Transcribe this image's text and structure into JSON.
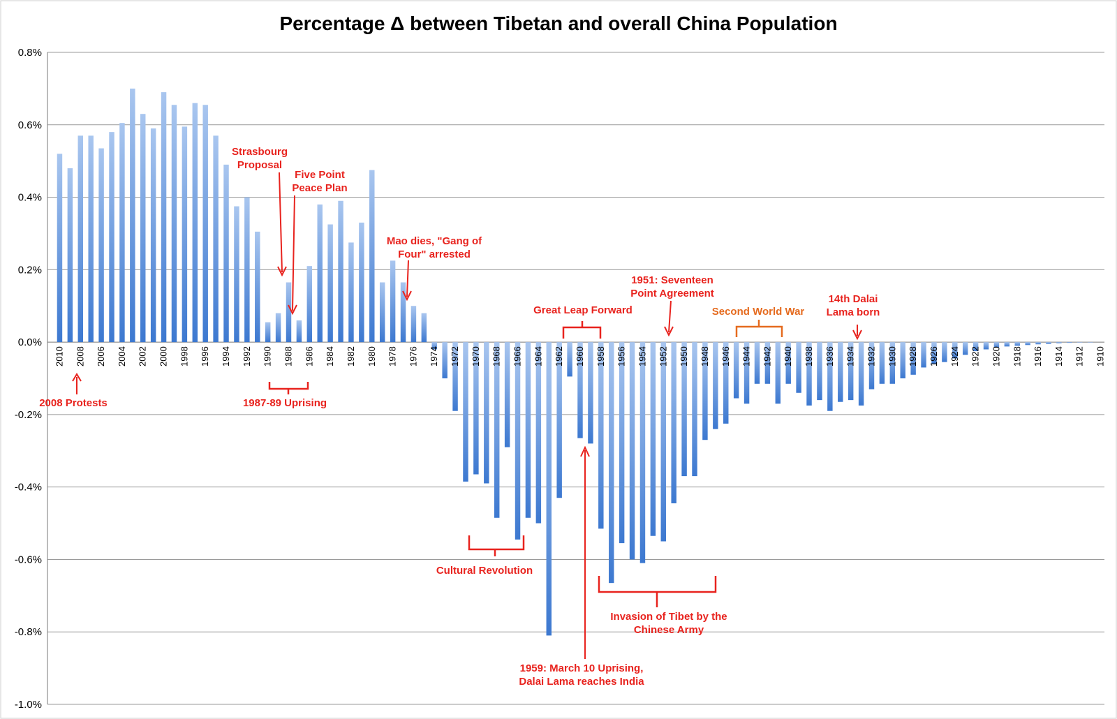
{
  "title": "Percentage Δ  between Tibetan and overall China Population",
  "colors": {
    "bar_top": "#a9c6ef",
    "bar_bottom": "#3c78d0",
    "annotation": "#e8231e",
    "annotation_alt": "#e56b1f",
    "grid": "#999999"
  },
  "chart_data": {
    "type": "bar",
    "title": "Percentage Δ  between Tibetan and overall China Population",
    "xlabel": "",
    "ylabel": "",
    "ylim": [
      -1.0,
      0.8
    ],
    "yticks": [
      "0.8%",
      "0.6%",
      "0.4%",
      "0.2%",
      "0.0%",
      "-0.2%",
      "-0.4%",
      "-0.6%",
      "-0.8%",
      "-1.0%"
    ],
    "grid": true,
    "x_order": "descending years 2010 to 1910; tick labels on even years",
    "categories": [
      2010,
      2009,
      2008,
      2007,
      2006,
      2005,
      2004,
      2003,
      2002,
      2001,
      2000,
      1999,
      1998,
      1997,
      1996,
      1995,
      1994,
      1993,
      1992,
      1991,
      1990,
      1989,
      1988,
      1987,
      1986,
      1985,
      1984,
      1983,
      1982,
      1981,
      1980,
      1979,
      1978,
      1977,
      1976,
      1975,
      1974,
      1973,
      1972,
      1971,
      1970,
      1969,
      1968,
      1967,
      1966,
      1965,
      1964,
      1963,
      1962,
      1961,
      1960,
      1959,
      1958,
      1957,
      1956,
      1955,
      1954,
      1953,
      1952,
      1951,
      1950,
      1949,
      1948,
      1947,
      1946,
      1945,
      1944,
      1943,
      1942,
      1941,
      1940,
      1939,
      1938,
      1937,
      1936,
      1935,
      1934,
      1933,
      1932,
      1931,
      1930,
      1929,
      1928,
      1927,
      1926,
      1925,
      1924,
      1923,
      1922,
      1921,
      1920,
      1919,
      1918,
      1917,
      1916,
      1915,
      1914,
      1913,
      1912,
      1911,
      1910
    ],
    "tick_labels": [
      "2010",
      "2008",
      "2006",
      "2004",
      "2002",
      "2000",
      "1998",
      "1996",
      "1994",
      "1992",
      "1990",
      "1988",
      "1986",
      "1984",
      "1982",
      "1980",
      "1978",
      "1976",
      "1974",
      "1972",
      "1970",
      "1968",
      "1966",
      "1964",
      "1962",
      "1960",
      "1958",
      "1956",
      "1954",
      "1952",
      "1950",
      "1948",
      "1946",
      "1944",
      "1942",
      "1940",
      "1938",
      "1936",
      "1934",
      "1932",
      "1930",
      "1928",
      "1926",
      "1924",
      "1922",
      "1920",
      "1918",
      "1916",
      "1914",
      "1912",
      "1910"
    ],
    "values": [
      0.52,
      0.48,
      0.57,
      0.57,
      0.535,
      0.58,
      0.605,
      0.7,
      0.63,
      0.59,
      0.69,
      0.655,
      0.595,
      0.66,
      0.655,
      0.57,
      0.49,
      0.375,
      0.4,
      0.305,
      0.055,
      0.08,
      0.165,
      0.06,
      0.21,
      0.38,
      0.325,
      0.39,
      0.275,
      0.33,
      0.475,
      0.165,
      0.225,
      0.165,
      0.1,
      0.08,
      -0.02,
      -0.1,
      -0.19,
      -0.385,
      -0.365,
      -0.39,
      -0.485,
      -0.29,
      -0.545,
      -0.485,
      -0.5,
      -0.81,
      -0.43,
      -0.095,
      -0.265,
      -0.28,
      -0.515,
      -0.665,
      -0.555,
      -0.6,
      -0.61,
      -0.535,
      -0.55,
      -0.445,
      -0.37,
      -0.37,
      -0.27,
      -0.24,
      -0.225,
      -0.155,
      -0.17,
      -0.115,
      -0.115,
      -0.17,
      -0.115,
      -0.14,
      -0.175,
      -0.16,
      -0.19,
      -0.165,
      -0.16,
      -0.175,
      -0.13,
      -0.115,
      -0.115,
      -0.1,
      -0.09,
      -0.07,
      -0.06,
      -0.055,
      -0.045,
      -0.035,
      -0.025,
      -0.02,
      -0.015,
      -0.012,
      -0.01,
      -0.008,
      -0.006,
      -0.005,
      -0.003,
      -0.002,
      -0.001,
      -0.001,
      0
    ]
  },
  "annotations": {
    "protests_2008": "2008 Protests",
    "strasbourg_1": "Strasbourg",
    "strasbourg_2": "Proposal",
    "fivepoint_1": "Five Point",
    "fivepoint_2": "Peace Plan",
    "uprising_8789": "1987-89 Uprising",
    "mao_1": "Mao dies, \"Gang of",
    "mao_2": "Four\" arrested",
    "cultural_revolution": "Cultural Revolution",
    "great_leap": "Great Leap Forward",
    "uprising_1959_1": "1959: March 10 Uprising,",
    "uprising_1959_2": "Dalai Lama reaches India",
    "seventeen_1": "1951: Seventeen",
    "seventeen_2": "Point Agreement",
    "invasion_1": "Invasion of Tibet by the",
    "invasion_2": "Chinese Army",
    "wwii": "Second World War",
    "dalai_1": "14th Dalai",
    "dalai_2": "Lama born"
  }
}
